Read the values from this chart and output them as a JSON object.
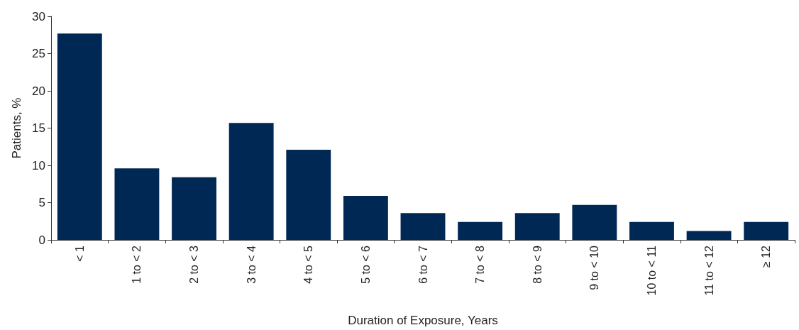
{
  "chart_data": {
    "type": "bar",
    "xlabel": "Duration of Exposure, Years",
    "ylabel": "Patients, %",
    "categories": [
      "< 1",
      "1 to < 2",
      "2 to < 3",
      "3 to < 4",
      "4 to < 5",
      "5 to < 6",
      "6 to < 7",
      "7 to < 8",
      "8 to < 9",
      "9 to < 10",
      "10 to < 11",
      "11 to < 12",
      "≥ 12"
    ],
    "values": [
      27.7,
      9.6,
      8.4,
      15.7,
      12.1,
      5.9,
      3.6,
      2.4,
      3.6,
      4.7,
      2.4,
      1.2,
      2.4
    ],
    "color": "#002855",
    "ylim": [
      0,
      30
    ],
    "yticks": [
      0,
      5,
      10,
      15,
      20,
      25,
      30
    ],
    "grid": false
  }
}
